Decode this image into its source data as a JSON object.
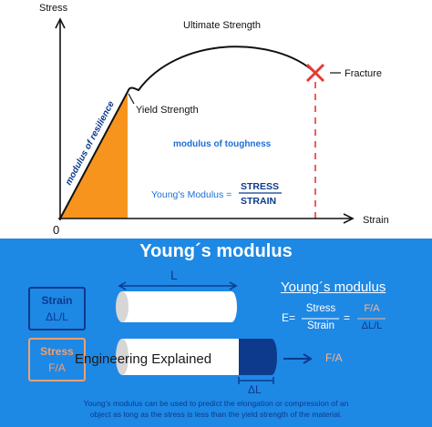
{
  "graph": {
    "y_axis_label": "Stress",
    "x_axis_label": "Strain",
    "origin_label": "0",
    "ultimate_strength": "Ultimate Strength",
    "yield_strength": "Yield Strength",
    "fracture": "Fracture",
    "modulus_of_resilience": "modulus of resilience",
    "modulus_of_toughness": "modulus of toughness",
    "youngs_formula_lhs": "Young's Modulus =",
    "youngs_formula_num": "STRESS",
    "youngs_formula_den": "STRAIN",
    "colors": {
      "curve": "#111111",
      "resilience_fill": "#f7941d",
      "fracture": "#e53935",
      "accent": "#1e6fd9"
    }
  },
  "panel": {
    "title": "Young´s modulus",
    "length_label": "L",
    "delta_length_label": "ΔL",
    "strain_label": "Strain",
    "strain_value": "ΔL/L",
    "stress_label": "Stress",
    "stress_value": "F/A",
    "force_label": "F/A",
    "watermark": "Engineering Explained",
    "formula_title": "Young´s modulus",
    "formula_lhs": "E=",
    "formula_num1": "Stress",
    "formula_den1": "Strain",
    "formula_eq": "=",
    "formula_num2": "F/A",
    "formula_den2": "ΔL/L",
    "caption_line1": "Young's modulus can be used to predict the elongation or compression of an",
    "caption_line2": "object as long as the stress is less than the yield strength of the material.",
    "colors": {
      "background": "#1e88e5",
      "navy": "#0d3a8c",
      "orange": "#f0a070",
      "peach": "#ffb58a"
    }
  }
}
